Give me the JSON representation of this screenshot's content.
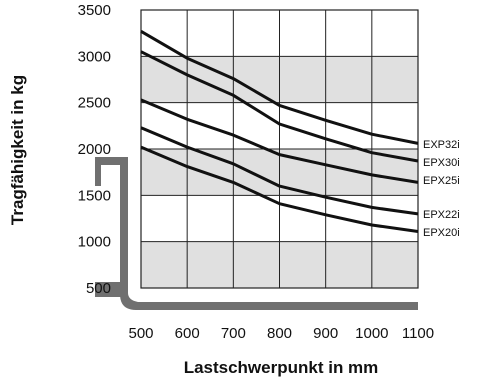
{
  "chart_data": {
    "type": "line",
    "title": "",
    "xlabel": "Lastschwerpunkt in mm",
    "ylabel": "Tragfähigkeit in kg",
    "xlim": [
      500,
      1100
    ],
    "ylim": [
      500,
      3500
    ],
    "x_ticks": [
      "500",
      "600",
      "700",
      "800",
      "900",
      "1000",
      "1100"
    ],
    "y_ticks": [
      "500",
      "1000",
      "1500",
      "2000",
      "2500",
      "3000",
      "3500"
    ],
    "grid": true,
    "band_color": "#e0e0e0",
    "line_color": "#111111",
    "fork_color": "#707070",
    "series": [
      {
        "name": "EXP32i",
        "x": [
          500,
          600,
          700,
          800,
          900,
          1000,
          1100
        ],
        "values": [
          3270,
          2980,
          2760,
          2470,
          2310,
          2160,
          2060
        ]
      },
      {
        "name": "EPX30i",
        "x": [
          500,
          600,
          700,
          800,
          900,
          1000,
          1100
        ],
        "values": [
          3050,
          2800,
          2580,
          2270,
          2110,
          1960,
          1870
        ]
      },
      {
        "name": "EPX25i",
        "x": [
          500,
          600,
          700,
          800,
          900,
          1000,
          1100
        ],
        "values": [
          2530,
          2320,
          2150,
          1940,
          1830,
          1720,
          1640
        ]
      },
      {
        "name": "EPX22i",
        "x": [
          500,
          600,
          700,
          800,
          900,
          1000,
          1100
        ],
        "values": [
          2230,
          2020,
          1840,
          1600,
          1480,
          1370,
          1300
        ]
      },
      {
        "name": "EPX20i",
        "x": [
          500,
          600,
          700,
          800,
          900,
          1000,
          1100
        ],
        "values": [
          2020,
          1810,
          1640,
          1410,
          1290,
          1180,
          1110
        ]
      }
    ]
  }
}
